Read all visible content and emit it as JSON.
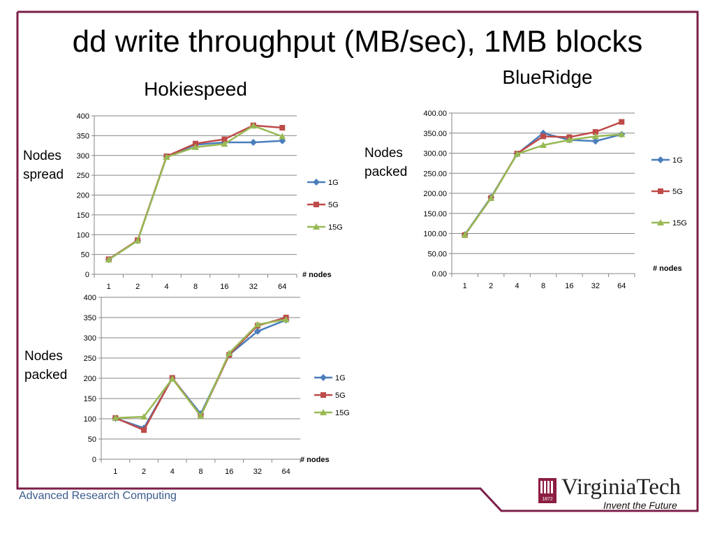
{
  "slide": {
    "title": "dd write throughput (MB/sec), 1MB blocks",
    "footer": "Advanced Research Computing",
    "brand": {
      "name": "VirginiaTech",
      "tagline": "Invent the Future",
      "seal_text": "1872"
    },
    "frame_color": "#7b1f4a"
  },
  "headings": {
    "hokiespeed": "Hokiespeed",
    "blueridge": "BlueRidge"
  },
  "side_labels": {
    "spread": [
      "Nodes",
      "spread"
    ],
    "packed_hs": [
      "Nodes",
      "packed"
    ],
    "packed_br": [
      "Nodes",
      "packed"
    ]
  },
  "colors": {
    "1G": "#4a7ebb",
    "5G": "#be4b48",
    "15G": "#98b954"
  },
  "chart_data": [
    {
      "id": "hs-spread",
      "type": "line",
      "categories": [
        "1",
        "2",
        "4",
        "8",
        "16",
        "32",
        "64"
      ],
      "xlabel": "# nodes",
      "ylim": [
        0,
        400
      ],
      "yticks": [
        "0",
        "50",
        "100",
        "150",
        "200",
        "250",
        "300",
        "350",
        "400"
      ],
      "grid": true,
      "legend": "right",
      "series": [
        {
          "name": "1G",
          "values": [
            37,
            85,
            297,
            327,
            333,
            333,
            337
          ]
        },
        {
          "name": "5G",
          "values": [
            38,
            86,
            298,
            330,
            341,
            376,
            370
          ]
        },
        {
          "name": "15G",
          "values": [
            37,
            85,
            296,
            321,
            329,
            375,
            348
          ]
        }
      ]
    },
    {
      "id": "hs-packed",
      "type": "line",
      "categories": [
        "1",
        "2",
        "4",
        "8",
        "16",
        "32",
        "64"
      ],
      "xlabel": "# nodes",
      "ylim": [
        0,
        400
      ],
      "yticks": [
        "0",
        "50",
        "100",
        "150",
        "200",
        "250",
        "300",
        "350",
        "400"
      ],
      "grid": true,
      "legend": "right",
      "series": [
        {
          "name": "1G",
          "values": [
            101,
            77,
            200,
            112,
            258,
            316,
            344
          ]
        },
        {
          "name": "5G",
          "values": [
            102,
            72,
            201,
            107,
            258,
            330,
            350
          ]
        },
        {
          "name": "15G",
          "values": [
            102,
            105,
            199,
            107,
            262,
            333,
            345
          ]
        }
      ]
    },
    {
      "id": "br-packed",
      "type": "line",
      "categories": [
        "1",
        "2",
        "4",
        "8",
        "16",
        "32",
        "64"
      ],
      "xlabel": "# nodes",
      "ylim": [
        0,
        400
      ],
      "yticks": [
        "0.00",
        "50.00",
        "100.00",
        "150.00",
        "200.00",
        "250.00",
        "300.00",
        "350.00",
        "400.00"
      ],
      "grid": true,
      "legend": "right",
      "series": [
        {
          "name": "1G",
          "values": [
            97,
            190,
            298,
            350,
            333,
            330,
            347
          ]
        },
        {
          "name": "5G",
          "values": [
            96,
            188,
            299,
            342,
            340,
            353,
            378
          ]
        },
        {
          "name": "15G",
          "values": [
            96,
            188,
            298,
            320,
            333,
            342,
            347
          ]
        }
      ]
    }
  ]
}
